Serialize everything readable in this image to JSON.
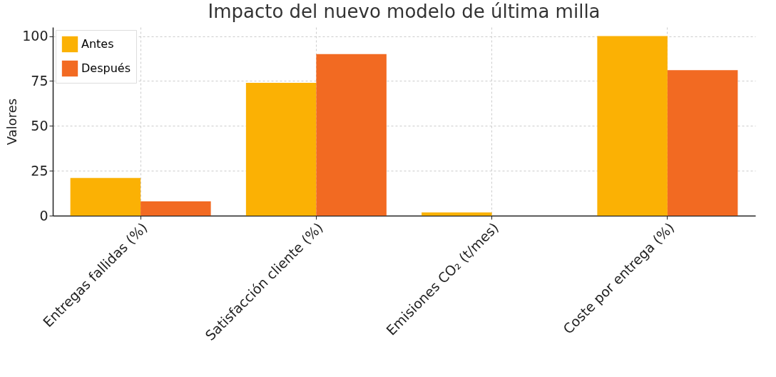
{
  "chart_data": {
    "type": "bar",
    "title": "Impacto del nuevo modelo de última milla",
    "ylabel": "Valores",
    "categories": [
      "Entregas fallidas (%)",
      "Satisfacción cliente (%)",
      "Emisiones CO₂ (t/mes)",
      "Coste por entrega (%)"
    ],
    "series": [
      {
        "name": "Antes",
        "color": "#fbb104",
        "values": [
          21,
          74,
          1.8,
          100
        ]
      },
      {
        "name": "Después",
        "color": "#f26a22",
        "values": [
          8,
          90,
          0,
          81
        ]
      }
    ],
    "ylim": [
      0,
      105
    ],
    "yticks": [
      0,
      25,
      50,
      75,
      100
    ],
    "grid": true,
    "legend": "top left"
  }
}
